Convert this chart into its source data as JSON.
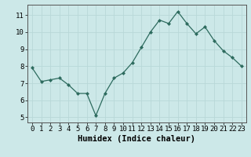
{
  "x": [
    0,
    1,
    2,
    3,
    4,
    5,
    6,
    7,
    8,
    9,
    10,
    11,
    12,
    13,
    14,
    15,
    16,
    17,
    18,
    19,
    20,
    21,
    22,
    23
  ],
  "y": [
    7.9,
    7.1,
    7.2,
    7.3,
    6.9,
    6.4,
    6.4,
    5.1,
    6.4,
    7.3,
    7.6,
    8.2,
    9.1,
    10.0,
    10.7,
    10.5,
    11.2,
    10.5,
    9.9,
    10.3,
    9.5,
    8.9,
    8.5,
    8.0
  ],
  "line_color": "#2d6b5e",
  "marker": "D",
  "marker_size": 2.0,
  "bg_color": "#cce8e8",
  "grid_color": "#b8d8d8",
  "xlabel": "Humidex (Indice chaleur)",
  "ylim": [
    4.7,
    11.6
  ],
  "xlim": [
    -0.5,
    23.5
  ],
  "yticks": [
    5,
    6,
    7,
    8,
    9,
    10,
    11
  ],
  "xticks": [
    0,
    1,
    2,
    3,
    4,
    5,
    6,
    7,
    8,
    9,
    10,
    11,
    12,
    13,
    14,
    15,
    16,
    17,
    18,
    19,
    20,
    21,
    22,
    23
  ],
  "tick_label_fontsize": 6.5,
  "xlabel_fontsize": 7.5
}
